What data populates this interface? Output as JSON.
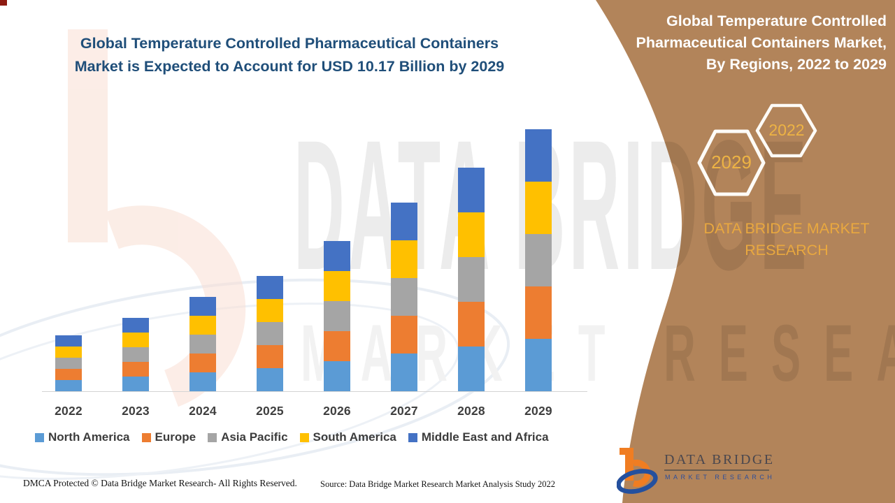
{
  "colors": {
    "panel": "#B2845A",
    "gold": "#E9A83F",
    "hex_text": "#EDB344",
    "title_navy": "#1F4E79",
    "axis_label": "#3F3F3F"
  },
  "header": {
    "title_line1": "Global Temperature Controlled Pharmaceutical Containers",
    "title_line2": "Market is Expected to Account for USD 10.17 Billion by 2029"
  },
  "side_panel": {
    "title_lines": [
      "Global Temperature Controlled",
      "Pharmaceutical Containers Market,",
      "By Regions, 2022 to 2029"
    ],
    "hexagon_large_label": "2029",
    "hexagon_small_label": "2022",
    "brand_line1": "DATA BRIDGE MARKET",
    "brand_line2": "RESEARCH",
    "logo_name": "DATA BRIDGE",
    "logo_subtitle": "MARKET RESEARCH"
  },
  "watermark": {
    "line1": "DATA BRIDGE",
    "line2": "MARKET RESEARCH"
  },
  "footer": {
    "left": "DMCA Protected © Data Bridge Market Research- All Rights Reserved.",
    "right": "Source: Data Bridge Market Research Market Analysis Study 2022"
  },
  "chart_data": {
    "type": "bar",
    "stacked": true,
    "unit": "USD Billion",
    "title": "Global Temperature Controlled Pharmaceutical Containers Market, By Regions, 2022 to 2029",
    "categories": [
      "2022",
      "2023",
      "2024",
      "2025",
      "2026",
      "2027",
      "2028",
      "2029"
    ],
    "series": [
      {
        "name": "North America",
        "color": "#5B9BD5",
        "values": [
          0.43,
          0.58,
          0.73,
          0.88,
          1.16,
          1.45,
          1.74,
          2.03
        ]
      },
      {
        "name": "Europe",
        "color": "#ED7D31",
        "values": [
          0.43,
          0.58,
          0.73,
          0.88,
          1.16,
          1.45,
          1.74,
          2.03
        ]
      },
      {
        "name": "Asia Pacific",
        "color": "#A5A5A5",
        "values": [
          0.43,
          0.58,
          0.73,
          0.88,
          1.16,
          1.45,
          1.74,
          2.03
        ]
      },
      {
        "name": "South America",
        "color": "#FFC000",
        "values": [
          0.43,
          0.58,
          0.73,
          0.88,
          1.16,
          1.45,
          1.74,
          2.03
        ]
      },
      {
        "name": "Middle East and Africa",
        "color": "#4472C4",
        "values": [
          0.43,
          0.58,
          0.73,
          0.88,
          1.16,
          1.45,
          1.74,
          2.03
        ]
      }
    ],
    "totals_estimated": [
      2.15,
      2.9,
      3.65,
      4.4,
      5.8,
      7.25,
      8.7,
      10.15
    ],
    "annotation": "Expected to account for USD 10.17 Billion by 2029",
    "xlabel": "",
    "ylabel": "",
    "y_axis_visible": false,
    "gridlines": false,
    "legend_position": "bottom"
  }
}
